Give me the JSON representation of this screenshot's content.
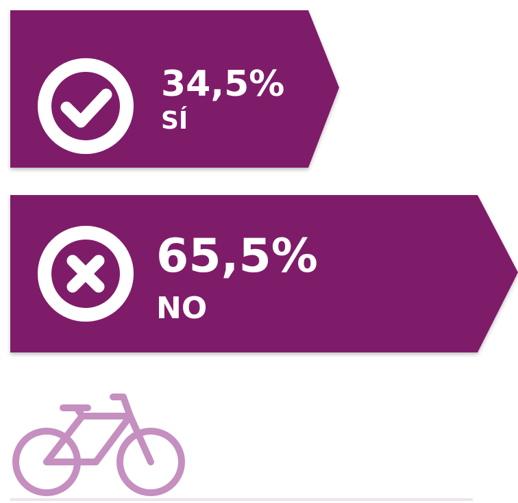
{
  "chart_data": {
    "type": "bar",
    "categories": [
      "SÍ",
      "NO"
    ],
    "values": [
      34.5,
      65.5
    ],
    "value_labels": [
      "34,5%",
      "65,5%"
    ],
    "color": "#7f1d6a"
  }
}
